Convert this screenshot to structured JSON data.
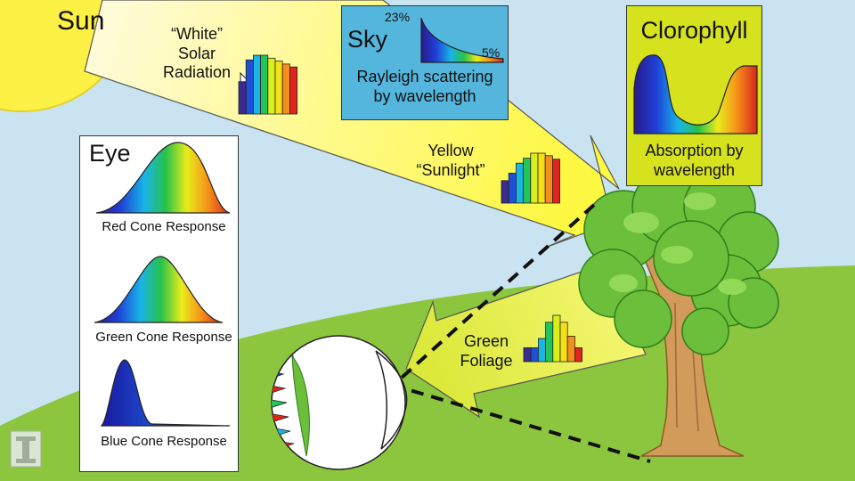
{
  "labels": {
    "sun": "Sun",
    "white_radiation": [
      "“White”",
      "Solar",
      "Radiation"
    ],
    "sky_title": "Sky",
    "sky_max_percent": "23%",
    "sky_min_percent": "5%",
    "sky_caption": [
      "Rayleigh scattering",
      "by wavelength"
    ],
    "clorophyll_title": "Clorophyll",
    "clorophyll_caption": [
      "Absorption by",
      "wavelength"
    ],
    "yellow_sunlight": [
      "Yellow",
      "“Sunlight”"
    ],
    "eye_title": "Eye",
    "red_cone": "Red Cone Response",
    "green_cone": "Green Cone Response",
    "blue_cone": "Blue Cone Response",
    "green_foliage": [
      "Green",
      "Foliage"
    ]
  },
  "spectra": {
    "white_radiation": [
      0.55,
      0.92,
      1.0,
      1.0,
      0.95,
      0.9,
      0.85,
      0.8
    ],
    "yellow_sunlight": [
      0.45,
      0.6,
      0.8,
      0.9,
      1.0,
      1.0,
      0.95,
      0.88
    ],
    "green_foliage": [
      0.3,
      0.3,
      0.5,
      0.85,
      1.0,
      0.85,
      0.55,
      0.3
    ]
  },
  "colors": {
    "sky_background": "#c9e4f0",
    "sun": "#fdf146",
    "grass": "#8cc63f",
    "light_beam": "#fdfb63",
    "sky_box": "#54b6dd",
    "clorophyll_box": "#d6e21e",
    "foliage": "#6cbf3a",
    "trunk": "#d29b5a",
    "spectrum_bars": [
      "#3b2b8f",
      "#1f4fd6",
      "#19b6e3",
      "#22c55a",
      "#d9ef1a",
      "#f7df16",
      "#f58f1a",
      "#e2251c"
    ]
  },
  "icons": [
    "university-logo-icon"
  ]
}
